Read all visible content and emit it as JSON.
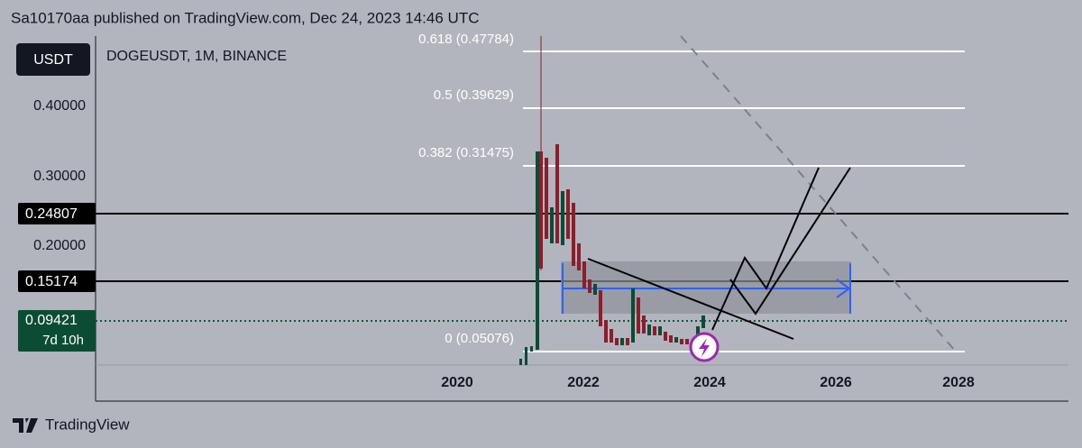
{
  "header": {
    "published": "Sa10170aa published on TradingView.com, Dec 24, 2023 14:46 UTC"
  },
  "toolbar": {
    "currency": "USDT",
    "symbol": "DOGEUSDT, 1M, BINANCE"
  },
  "price_axis": {
    "labels": [
      "0.40000",
      "0.30000",
      "0.20000"
    ],
    "markers": [
      "0.24807",
      "0.15174"
    ],
    "current_price": "0.09421",
    "countdown": "7d 10h"
  },
  "fib_levels": [
    "0.618 (0.47784)",
    "0.5 (0.39629)",
    "0.382 (0.31475)",
    "0 (0.05076)"
  ],
  "time_axis": {
    "labels": [
      "2020",
      "2022",
      "2024",
      "2026",
      "2028"
    ]
  },
  "footer": {
    "brand": "TradingView"
  }
}
